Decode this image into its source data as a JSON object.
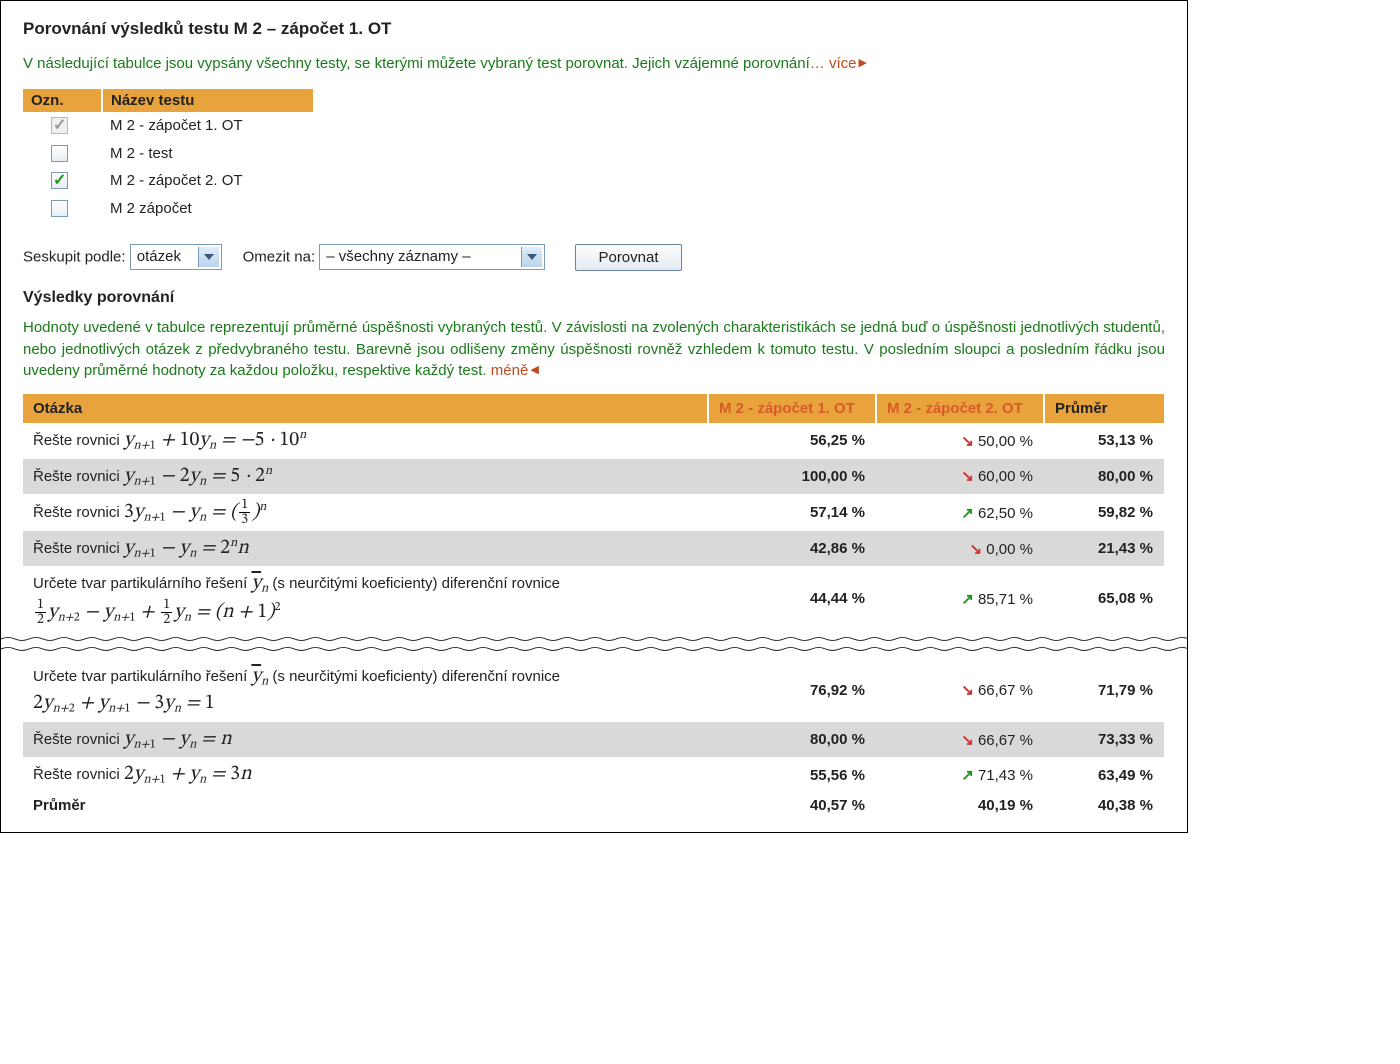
{
  "title": "Porovnání výsledků testu M 2 – zápočet 1. OT",
  "intro": "V následující tabulce jsou vypsány všechny testy, se kterými můžete vybraný test porovnat. Jejich vzájemné porovnání",
  "more": "… více",
  "testlist": {
    "headers": [
      "Ozn.",
      "Název testu"
    ],
    "rows": [
      {
        "checked": true,
        "disabled": true,
        "label": "M 2 - zápočet 1. OT"
      },
      {
        "checked": false,
        "disabled": false,
        "label": "M 2 - test"
      },
      {
        "checked": true,
        "disabled": false,
        "label": "M 2 - zápočet 2. OT"
      },
      {
        "checked": false,
        "disabled": false,
        "label": "M 2 zápočet"
      }
    ]
  },
  "controls": {
    "group_label": "Seskupit podle:",
    "group_value": "otázek",
    "limit_label": "Omezit na:",
    "limit_value": "– všechny záznamy –",
    "button": "Porovnat"
  },
  "results_heading": "Výsledky porovnání",
  "results_intro": "Hodnoty uvedené v tabulce reprezentují průměrné úspěšnosti vybraných testů. V závislosti na zvolených charakteristikách se jedná buď o úspěšnosti jednotlivých studentů, nebo jednotlivých otázek z předvybraného testu. Barevně jsou odlišeny změny úspěšnosti rovněž vzhledem k tomuto testu. V posledním sloupci a posledním řádku jsou uvedeny průměrné hodnoty za každou položku, respektive každý test.",
  "less": "méně",
  "results": {
    "columns": [
      "Otázka",
      "M 2 - zápočet 1. OT",
      "M 2 - zápočet 2. OT",
      "Průměr"
    ],
    "col_widths": [
      "auto",
      "168px",
      "168px",
      "120px"
    ],
    "rows_top": [
      {
        "q_key": "q1",
        "c1": "56,25 %",
        "c2": "50,00 %",
        "dir": "down",
        "avg": "53,13 %"
      },
      {
        "q_key": "q2",
        "c1": "100,00 %",
        "c2": "60,00 %",
        "dir": "down",
        "avg": "80,00 %"
      },
      {
        "q_key": "q3",
        "c1": "57,14 %",
        "c2": "62,50 %",
        "dir": "up",
        "avg": "59,82 %"
      },
      {
        "q_key": "q4",
        "c1": "42,86 %",
        "c2": "0,00 %",
        "dir": "down",
        "avg": "21,43 %"
      },
      {
        "q_key": "q5",
        "c1": "44,44 %",
        "c2": "85,71 %",
        "dir": "up",
        "avg": "65,08 %"
      }
    ],
    "rows_bot": [
      {
        "q_key": "q6",
        "c1": "76,92 %",
        "c2": "66,67 %",
        "dir": "down",
        "avg": "71,79 %"
      },
      {
        "q_key": "q7",
        "c1": "80,00 %",
        "c2": "66,67 %",
        "dir": "down",
        "avg": "73,33 %"
      },
      {
        "q_key": "q8",
        "c1": "55,56 %",
        "c2": "71,43 %",
        "dir": "up",
        "avg": "63,49 %"
      }
    ],
    "summary": {
      "label": "Průměr",
      "c1": "40,57 %",
      "c2": "40,19 %",
      "avg": "40,38 %"
    }
  },
  "q_prefix": "Řešte rovnici ",
  "q_prefix_long": "Určete tvar partikulárního řešení ",
  "q_long_tail": " (s neurčitými koeficienty) diferenční rovnice"
}
